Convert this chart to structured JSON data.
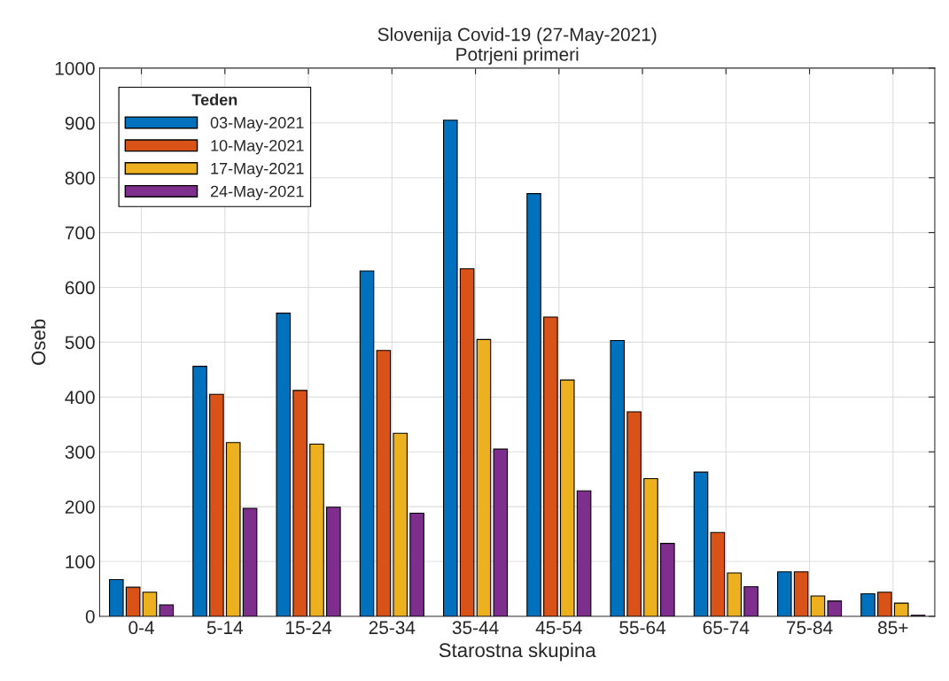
{
  "chart_data": {
    "type": "bar",
    "title": "Slovenija Covid-19 (27-May-2021)",
    "subtitle": "Potrjeni primeri",
    "xlabel": "Starostna skupina",
    "ylabel": "Oseb",
    "legend_title": "Teden",
    "categories": [
      "0-4",
      "5-14",
      "15-24",
      "25-34",
      "35-44",
      "45-54",
      "55-64",
      "65-74",
      "75-84",
      "85+"
    ],
    "series": [
      {
        "name": "03-May-2021",
        "color": "#0072bd",
        "values": [
          67,
          456,
          553,
          630,
          905,
          771,
          503,
          263,
          81,
          41
        ]
      },
      {
        "name": "10-May-2021",
        "color": "#d95319",
        "values": [
          53,
          405,
          412,
          485,
          634,
          546,
          373,
          153,
          81,
          44
        ]
      },
      {
        "name": "17-May-2021",
        "color": "#edb120",
        "values": [
          44,
          317,
          314,
          334,
          505,
          431,
          251,
          79,
          37,
          24
        ]
      },
      {
        "name": "24-May-2021",
        "color": "#7e2f8e",
        "values": [
          21,
          197,
          199,
          188,
          305,
          229,
          133,
          54,
          28,
          2
        ]
      }
    ],
    "ylim": [
      0,
      1000
    ],
    "yticks": [
      0,
      100,
      200,
      300,
      400,
      500,
      600,
      700,
      800,
      900,
      1000
    ],
    "grid": true,
    "legend": "top left"
  }
}
